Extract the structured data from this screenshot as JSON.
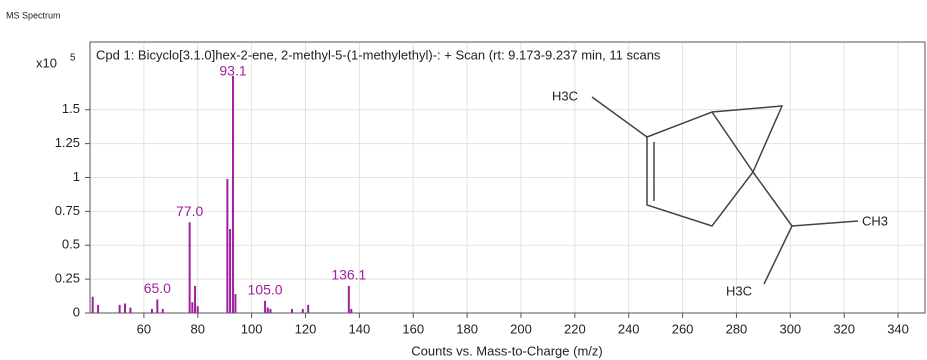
{
  "header": "MS Spectrum",
  "chart_data": {
    "type": "stem",
    "title": "Cpd 1: Bicyclo[3.1.0]hex-2-ene, 2-methyl-5-(1-methylethyl)-: + Scan (rt: 9.173-9.237 min, 11 scans",
    "x_label": "Counts vs. Mass-to-Charge (m/z)",
    "y_multiplier": {
      "base": "x10",
      "exponent": "5"
    },
    "x": [
      41,
      43,
      51,
      53,
      55,
      63,
      65,
      67,
      77,
      78,
      79,
      80,
      91,
      92,
      93.1,
      94,
      105,
      106,
      107,
      115,
      119,
      121,
      136.1,
      137
    ],
    "values": [
      0.12,
      0.06,
      0.06,
      0.07,
      0.04,
      0.03,
      0.1,
      0.03,
      0.67,
      0.08,
      0.2,
      0.05,
      0.99,
      0.62,
      1.75,
      0.14,
      0.09,
      0.04,
      0.03,
      0.03,
      0.03,
      0.06,
      0.2,
      0.03
    ],
    "peak_labels": [
      {
        "value": 65,
        "label": "65.0"
      },
      {
        "value": 77,
        "label": "77.0"
      },
      {
        "value": 93.1,
        "label": "93.1"
      },
      {
        "value": 105,
        "label": "105.0"
      },
      {
        "value": 136.1,
        "label": "136.1"
      }
    ],
    "color": "#a01fa0",
    "xlim": [
      40,
      350
    ],
    "ylim": [
      0,
      2
    ],
    "xticks": [
      60,
      80,
      100,
      120,
      140,
      160,
      180,
      200,
      220,
      240,
      260,
      280,
      300,
      320,
      340
    ],
    "yticks": [
      0,
      0.25,
      0.5,
      0.75,
      1,
      1.25,
      1.5
    ],
    "grid": true,
    "structure_labels": [
      "H3C",
      "CH3",
      "H3C"
    ]
  }
}
